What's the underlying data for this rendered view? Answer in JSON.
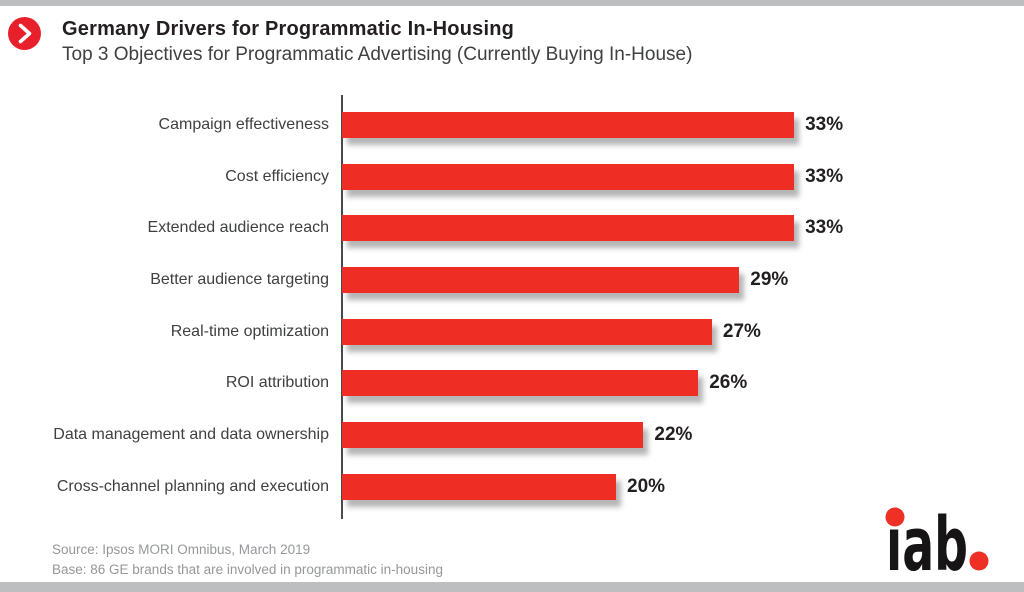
{
  "header": {
    "title": "Germany Drivers for Programmatic In-Housing",
    "subtitle": "Top 3 Objectives for Programmatic Advertising (Currently Buying In-House)"
  },
  "chart_data": {
    "type": "bar",
    "orientation": "horizontal",
    "title": "Germany Drivers for Programmatic In-Housing",
    "subtitle": "Top 3 Objectives for Programmatic Advertising (Currently Buying In-House)",
    "categories": [
      "Campaign effectiveness",
      "Cost efficiency",
      "Extended audience reach",
      "Better audience targeting",
      "Real-time optimization",
      "ROI attribution",
      "Data management and data ownership",
      "Cross-channel planning and execution"
    ],
    "values": [
      33,
      33,
      33,
      29,
      27,
      26,
      22,
      20
    ],
    "value_suffix": "%",
    "xlabel": "",
    "ylabel": "",
    "xlim": [
      0,
      35
    ],
    "grid": false,
    "legend": false,
    "value_labels_position": "end-of-bar",
    "bar_color": "#ee2d25"
  },
  "footer": {
    "source": "Source: Ipsos MORI Omnibus, March 2019",
    "base": "Base: 86 GE brands that are involved in programmatic in-housing"
  },
  "branding": {
    "logo_text": "iab."
  },
  "colors": {
    "accent_red": "#ee2d25",
    "icon_red": "#e8202c",
    "strip_gray": "#bcbec0",
    "text_dark": "#231f20",
    "text_mid": "#3f4041",
    "text_gray": "#95979a",
    "axis": "#4a4a4c",
    "logo_black": "#161415",
    "logo_red": "#ee3124"
  }
}
